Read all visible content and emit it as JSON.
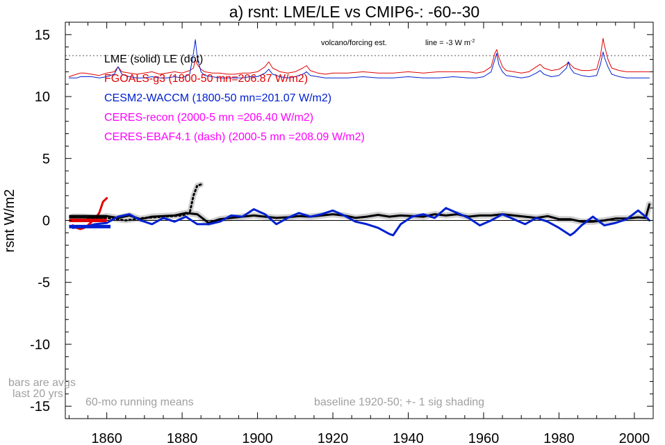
{
  "chart_data": {
    "type": "line",
    "title": "a) rsnt: LME/LE vs CMIP6-: -60--30",
    "ylabel": "rsnt W/m2",
    "xlabel": "",
    "xlim": [
      1849,
      2005
    ],
    "ylim": [
      -16,
      16
    ],
    "x_ticks": [
      1860,
      1880,
      1900,
      1920,
      1940,
      1960,
      1980,
      2000
    ],
    "y_ticks": [
      15,
      10,
      5,
      0,
      -5,
      -10,
      -15
    ],
    "grid": false,
    "legend": {
      "placement": "upper-left inside plot",
      "entries": [
        {
          "label": "LME (solid)   LE (dot)",
          "color": "#000000"
        },
        {
          "label": "FGOALS-g3 (1800-50 mn=206.87 W/m2)",
          "color": "#e00000"
        },
        {
          "label": "CESM2-WACCM (1800-50 mn=201.07 W/m2)",
          "color": "#0020d0"
        },
        {
          "label": "CERES-recon (2000-5 mn =206.40 W/m2)",
          "color": "#ff00ff"
        },
        {
          "label": "CERES-EBAF4.1 (dash) (2000-5 mn =208.09 W/m2)",
          "color": "#ff00ff"
        }
      ]
    },
    "annotations": {
      "volcano": "volcano/forcing est.",
      "line_note": "line = -3 W m",
      "line_note_sup": "-2",
      "bars_note_1": "bars are avgs",
      "bars_note_2": "last 20 yrs",
      "running_means": "60-mo running means",
      "baseline": "baseline 1920-50; +- 1 sig shading"
    },
    "reference_line_y": 13.3,
    "series": [
      {
        "name": "FGOALS-g3",
        "role": "volcanic forcing estimate",
        "color": "#e00000",
        "x": [
          1850,
          1852,
          1853,
          1854,
          1856,
          1858,
          1860,
          1862,
          1863,
          1864,
          1866,
          1868,
          1870,
          1872,
          1874,
          1876,
          1878,
          1880,
          1882,
          1883,
          1883.5,
          1884,
          1885,
          1886,
          1888,
          1890,
          1892,
          1894,
          1896,
          1898,
          1900,
          1902,
          1903,
          1904,
          1906,
          1908,
          1910,
          1912,
          1913,
          1914,
          1916,
          1918,
          1920,
          1924,
          1928,
          1932,
          1936,
          1940,
          1944,
          1948,
          1952,
          1956,
          1958,
          1960,
          1962,
          1963,
          1963.5,
          1964,
          1965,
          1966,
          1968,
          1970,
          1972,
          1974,
          1975,
          1976,
          1978,
          1980,
          1982,
          1982.5,
          1983,
          1984,
          1986,
          1988,
          1990,
          1991,
          1991.7,
          1992,
          1993,
          1994,
          1996,
          1998,
          2000,
          2004
        ],
        "y": [
          11.6,
          11.8,
          11.9,
          11.9,
          11.8,
          11.7,
          11.9,
          12.0,
          12.4,
          12.0,
          11.9,
          11.8,
          11.9,
          12.0,
          11.8,
          11.9,
          12.0,
          11.9,
          12.1,
          12.3,
          13.0,
          12.6,
          12.2,
          12.0,
          11.9,
          11.9,
          11.8,
          11.8,
          11.9,
          11.9,
          12.0,
          12.4,
          12.8,
          12.3,
          12.0,
          11.9,
          12.0,
          12.3,
          12.5,
          12.1,
          11.9,
          11.8,
          11.9,
          11.9,
          12.0,
          11.9,
          11.9,
          12.0,
          11.9,
          12.0,
          12.0,
          12.0,
          11.9,
          12.0,
          12.4,
          13.5,
          13.8,
          13.2,
          12.4,
          12.1,
          12.0,
          11.9,
          12.0,
          12.4,
          12.6,
          12.3,
          12.1,
          12.2,
          12.6,
          12.8,
          12.6,
          12.3,
          12.1,
          12.1,
          12.2,
          13.3,
          14.7,
          14.2,
          13.0,
          12.3,
          12.1,
          12.0,
          12.0,
          12.0
        ]
      },
      {
        "name": "CESM2-WACCM",
        "role": "volcanic forcing estimate",
        "color": "#0020d0",
        "x": [
          1850,
          1852,
          1853,
          1854,
          1856,
          1858,
          1860,
          1862,
          1863,
          1864,
          1866,
          1868,
          1870,
          1872,
          1874,
          1876,
          1878,
          1880,
          1882,
          1883,
          1883.5,
          1884,
          1885,
          1886,
          1888,
          1890,
          1892,
          1894,
          1896,
          1898,
          1900,
          1902,
          1903,
          1904,
          1906,
          1908,
          1910,
          1912,
          1913,
          1914,
          1916,
          1918,
          1920,
          1924,
          1928,
          1932,
          1936,
          1940,
          1944,
          1948,
          1952,
          1956,
          1958,
          1960,
          1962,
          1963,
          1963.5,
          1964,
          1965,
          1966,
          1968,
          1970,
          1972,
          1974,
          1975,
          1976,
          1978,
          1980,
          1982,
          1982.5,
          1983,
          1984,
          1986,
          1988,
          1990,
          1991,
          1991.7,
          1992,
          1993,
          1994,
          1996,
          1998,
          2000,
          2004
        ],
        "y": [
          11.5,
          11.5,
          11.6,
          11.6,
          11.6,
          11.5,
          11.6,
          11.8,
          12.4,
          11.8,
          11.6,
          11.5,
          11.5,
          11.6,
          11.5,
          11.5,
          11.6,
          11.5,
          11.8,
          13.5,
          14.6,
          13.2,
          12.0,
          11.7,
          11.6,
          11.5,
          11.5,
          11.5,
          11.5,
          11.6,
          11.6,
          11.9,
          12.2,
          11.8,
          11.6,
          11.5,
          11.6,
          11.8,
          12.0,
          11.7,
          11.6,
          11.5,
          11.5,
          11.5,
          11.6,
          11.5,
          11.5,
          11.6,
          11.5,
          11.5,
          11.6,
          11.5,
          11.5,
          11.6,
          12.0,
          13.0,
          13.5,
          12.6,
          12.0,
          11.7,
          11.6,
          11.5,
          11.6,
          11.9,
          12.1,
          11.8,
          11.6,
          11.7,
          12.3,
          12.8,
          12.3,
          11.9,
          11.7,
          11.6,
          11.7,
          12.6,
          13.6,
          13.2,
          12.4,
          11.8,
          11.6,
          11.5,
          11.5,
          11.5
        ]
      },
      {
        "name": "LME (solid)",
        "color": "#000000",
        "x": [
          1851,
          1854,
          1857,
          1860,
          1863,
          1866,
          1869,
          1872,
          1875,
          1878,
          1881,
          1884,
          1887,
          1890,
          1893,
          1896,
          1899,
          1902,
          1905,
          1908,
          1911,
          1914,
          1917,
          1920,
          1923,
          1926,
          1929,
          1932,
          1935,
          1938,
          1941,
          1944,
          1947,
          1950,
          1953,
          1956,
          1959,
          1962,
          1965,
          1968,
          1971,
          1974,
          1977,
          1980,
          1983,
          1986,
          1989,
          1992,
          1995,
          1998,
          2001,
          2003,
          2004
        ],
        "y": [
          0.3,
          0.3,
          0.2,
          0.35,
          0.2,
          0.4,
          0.1,
          0.3,
          0.35,
          0.4,
          0.6,
          0.5,
          -0.2,
          0.1,
          0.2,
          0.3,
          0.4,
          0.3,
          0.2,
          0.25,
          0.35,
          0.3,
          0.4,
          0.5,
          0.4,
          0.2,
          0.3,
          0.45,
          0.3,
          0.4,
          0.35,
          0.3,
          0.5,
          0.4,
          0.5,
          0.3,
          0.4,
          0.4,
          0.5,
          0.4,
          0.3,
          0.2,
          0.35,
          0.1,
          0.1,
          -0.1,
          -0.1,
          0.0,
          0.15,
          0.15,
          0.25,
          0.2,
          1.3
        ]
      },
      {
        "name": "LE (dot)",
        "color": "#000000",
        "dash": "2,4",
        "x": [
          1855,
          1860,
          1865,
          1870,
          1875,
          1880,
          1882,
          1883,
          1884,
          1885
        ],
        "y": [
          0.15,
          0.2,
          0.0,
          0.2,
          0.3,
          0.4,
          0.6,
          2.0,
          2.8,
          2.9
        ]
      },
      {
        "name": "CESM2-WACCM",
        "color": "#0020d0",
        "x": [
          1851,
          1854,
          1857,
          1860,
          1863,
          1866,
          1869,
          1872,
          1875,
          1878,
          1881,
          1884,
          1887,
          1890,
          1893,
          1896,
          1899,
          1902,
          1905,
          1908,
          1911,
          1914,
          1917,
          1920,
          1923,
          1926,
          1929,
          1932,
          1935,
          1936,
          1938,
          1941,
          1944,
          1947,
          1950,
          1953,
          1956,
          1959,
          1962,
          1965,
          1968,
          1971,
          1974,
          1977,
          1980,
          1983,
          1984,
          1986,
          1989,
          1992,
          1995,
          1998,
          2001,
          2003,
          2004
        ],
        "y": [
          -0.6,
          -0.5,
          -0.3,
          -0.2,
          0.3,
          0.5,
          0.0,
          -0.3,
          0.2,
          -0.1,
          0.3,
          -0.3,
          -0.3,
          -0.1,
          0.4,
          0.3,
          0.9,
          0.5,
          -0.3,
          0.2,
          0.6,
          0.3,
          0.5,
          0.8,
          0.4,
          -0.1,
          -0.3,
          -0.6,
          -1.1,
          -1.2,
          -0.3,
          0.3,
          0.5,
          0.2,
          1.0,
          0.6,
          0.2,
          -0.4,
          0.0,
          0.5,
          0.1,
          -0.3,
          0.2,
          -0.1,
          -0.6,
          -1.2,
          -1.0,
          -0.4,
          0.3,
          -0.4,
          -0.2,
          0.1,
          0.8,
          0.3,
          0.0
        ]
      },
      {
        "name": "FGOALS-g3",
        "color": "#e00000",
        "x": [
          1851,
          1852,
          1853,
          1854,
          1855,
          1856,
          1857,
          1858,
          1859,
          1860
        ],
        "y": [
          -0.4,
          -0.6,
          -0.7,
          -0.6,
          -0.4,
          -0.1,
          0.2,
          0.6,
          1.5,
          1.8
        ]
      }
    ],
    "bars": [
      {
        "name": "LME (solid)",
        "color": "#000000",
        "x": [
          1850,
          1860
        ],
        "y": 0.3
      },
      {
        "name": "FGOALS-g3",
        "color": "#e00000",
        "x": [
          1850,
          1860
        ],
        "y": 0.0
      },
      {
        "name": "CESM2-WACCM",
        "color": "#0020d0",
        "x": [
          1850,
          1861
        ],
        "y": -0.5
      }
    ]
  }
}
